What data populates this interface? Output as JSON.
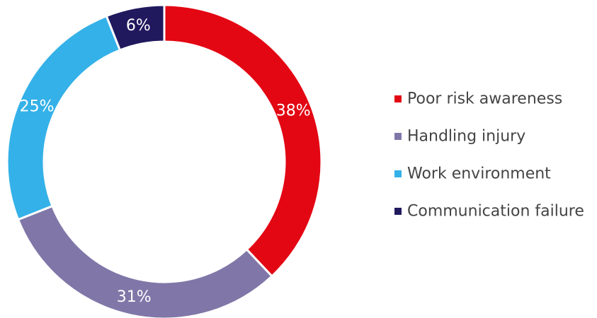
{
  "chart_data": {
    "type": "pie",
    "donut": true,
    "title": "",
    "legend_position": "right",
    "slices": [
      {
        "label": "Poor risk awareness",
        "value": 38,
        "display": "38%",
        "color": "#e30613"
      },
      {
        "label": "Handling injury",
        "value": 31,
        "display": "31%",
        "color": "#8077a8"
      },
      {
        "label": "Work environment",
        "value": 25,
        "display": "25%",
        "color": "#34b1e8"
      },
      {
        "label": "Communication failure",
        "value": 6,
        "display": "6%",
        "color": "#20195e"
      }
    ]
  }
}
